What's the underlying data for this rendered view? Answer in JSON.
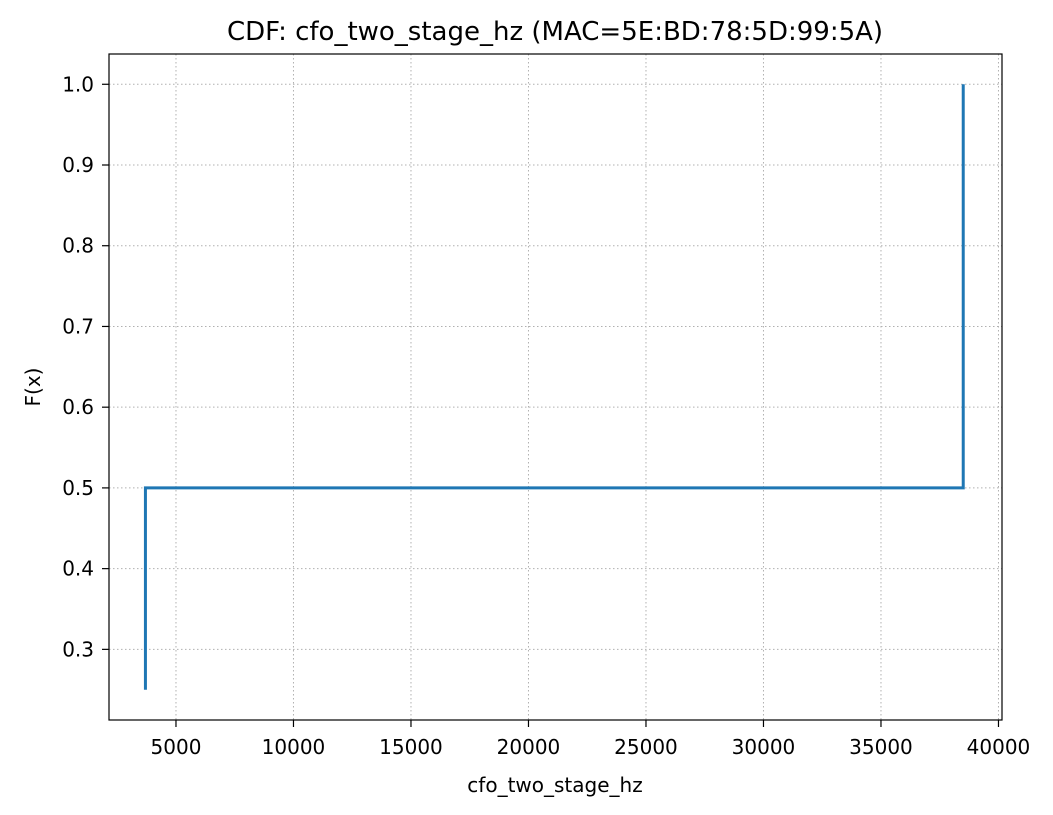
{
  "chart_data": {
    "type": "line",
    "step": "post",
    "title": "CDF: cfo_two_stage_hz (MAC=5E:BD:78:5D:99:5A)",
    "xlabel": "cfo_two_stage_hz",
    "ylabel": "F(x)",
    "xlim": [
      2150,
      40150
    ],
    "ylim": [
      0.2125,
      1.0375
    ],
    "xticks": [
      5000,
      10000,
      15000,
      20000,
      25000,
      30000,
      35000,
      40000
    ],
    "xtick_labels": [
      "5000",
      "10000",
      "15000",
      "20000",
      "25000",
      "30000",
      "35000",
      "40000"
    ],
    "yticks": [
      0.3,
      0.4,
      0.5,
      0.6,
      0.7,
      0.8,
      0.9,
      1.0
    ],
    "ytick_labels": [
      "0.3",
      "0.4",
      "0.5",
      "0.6",
      "0.7",
      "0.8",
      "0.9",
      "1.0"
    ],
    "grid": true,
    "series": [
      {
        "color": "#1f77b4",
        "x": [
          3700,
          3700,
          38500,
          38500
        ],
        "y": [
          0.25,
          0.5,
          0.5,
          1.0
        ]
      }
    ]
  }
}
